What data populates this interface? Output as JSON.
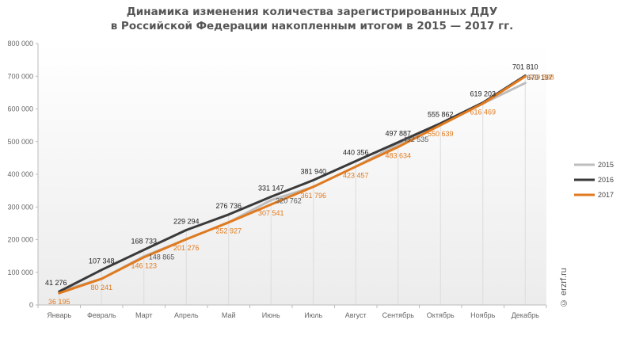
{
  "chart_data": {
    "type": "line",
    "title_line1": "Динамика изменения количества зарегистрированных ДДУ",
    "title_line2": "в Российской Федерации накопленным итогом в 2015 — 2017 гг.",
    "categories": [
      "Январь",
      "Февраль",
      "Март",
      "Апрель",
      "Май",
      "Июнь",
      "Июль",
      "Август",
      "Сентябрь",
      "Октябрь",
      "Ноябрь",
      "Декабрь"
    ],
    "y_ticks": [
      "0",
      "100 000",
      "200 000",
      "300 000",
      "400 000",
      "500 000",
      "600 000",
      "700 000",
      "800 000"
    ],
    "ylim": [
      0,
      800000
    ],
    "grid": false,
    "legend_position": "right",
    "series": [
      {
        "name": "2015",
        "color": "#bdbdbd",
        "values": [
          41276,
          80241,
          148865,
          201276,
          252927,
          320762,
          361796,
          423457,
          492535,
          550639,
          616469,
          679197
        ],
        "labels": [
          {
            "index": 8,
            "text": "492 535"
          },
          {
            "index": 2,
            "text": "148 865"
          },
          {
            "index": 5,
            "text": "320 762"
          },
          {
            "index": 11,
            "text": "679 197"
          }
        ]
      },
      {
        "name": "2016",
        "color": "#3a3a3a",
        "values": [
          41276,
          107348,
          168733,
          229294,
          276736,
          331147,
          381940,
          440356,
          497887,
          555862,
          619203,
          701810
        ],
        "labels": [
          {
            "index": 0,
            "text": "41 276"
          },
          {
            "index": 1,
            "text": "107 348"
          },
          {
            "index": 2,
            "text": "168 733"
          },
          {
            "index": 3,
            "text": "229 294"
          },
          {
            "index": 4,
            "text": "276 736"
          },
          {
            "index": 5,
            "text": "331 147"
          },
          {
            "index": 6,
            "text": "381 940"
          },
          {
            "index": 7,
            "text": "440 356"
          },
          {
            "index": 8,
            "text": "497 887"
          },
          {
            "index": 9,
            "text": "555 862"
          },
          {
            "index": 10,
            "text": "619 203"
          },
          {
            "index": 11,
            "text": "701 810"
          }
        ]
      },
      {
        "name": "2017",
        "color": "#e07a1f",
        "values": [
          36195,
          80241,
          146123,
          201276,
          252927,
          307541,
          361796,
          423457,
          483634,
          550639,
          616469,
          699508
        ],
        "labels": [
          {
            "index": 0,
            "text": "36 195"
          },
          {
            "index": 1,
            "text": "80 241"
          },
          {
            "index": 2,
            "text": "146 123"
          },
          {
            "index": 3,
            "text": "201 276"
          },
          {
            "index": 4,
            "text": "252 927"
          },
          {
            "index": 5,
            "text": "307 541"
          },
          {
            "index": 6,
            "text": "361 796"
          },
          {
            "index": 7,
            "text": "423 457"
          },
          {
            "index": 8,
            "text": "483 634"
          },
          {
            "index": 9,
            "text": "550 639"
          },
          {
            "index": 10,
            "text": "616 469"
          },
          {
            "index": 11,
            "text": "699 508"
          }
        ]
      }
    ]
  },
  "watermark": "© erzrf.ru"
}
